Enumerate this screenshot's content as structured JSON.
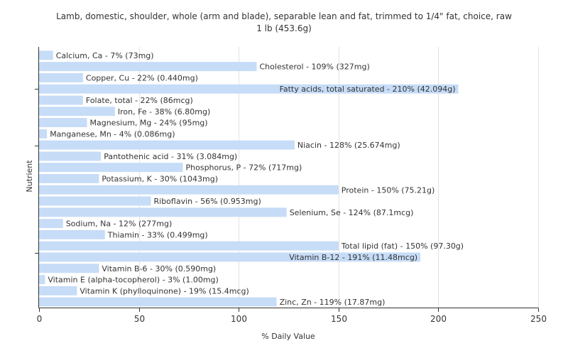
{
  "chart_data": {
    "type": "bar",
    "orientation": "horizontal",
    "title": "Lamb, domestic, shoulder, whole (arm and blade), separable lean and fat, trimmed to 1/4\" fat, choice, raw",
    "subtitle": "1 lb (453.6g)",
    "xlabel": "% Daily Value",
    "ylabel": "Nutrient",
    "xlim": [
      0,
      250
    ],
    "xticks": [
      0,
      50,
      100,
      150,
      200,
      250
    ],
    "grid": true,
    "legend": "none",
    "bar_color": "#c6dcf7",
    "categories": [
      "Calcium, Ca",
      "Cholesterol",
      "Copper, Cu",
      "Fatty acids, total saturated",
      "Folate, total",
      "Iron, Fe",
      "Magnesium, Mg",
      "Manganese, Mn",
      "Niacin",
      "Pantothenic acid",
      "Phosphorus, P",
      "Potassium, K",
      "Protein",
      "Riboflavin",
      "Selenium, Se",
      "Sodium, Na",
      "Thiamin",
      "Total lipid (fat)",
      "Vitamin B-12",
      "Vitamin B-6",
      "Vitamin E (alpha-tocopherol)",
      "Vitamin K (phylloquinone)",
      "Zinc, Zn"
    ],
    "values": [
      7,
      109,
      22,
      210,
      22,
      38,
      24,
      4,
      128,
      31,
      72,
      30,
      150,
      56,
      124,
      12,
      33,
      150,
      191,
      30,
      3,
      19,
      119
    ],
    "labels": [
      "Calcium, Ca - 7% (73mg)",
      "Cholesterol - 109% (327mg)",
      "Copper, Cu - 22% (0.440mg)",
      "Fatty acids, total saturated - 210% (42.094g)",
      "Folate, total - 22% (86mcg)",
      "Iron, Fe - 38% (6.80mg)",
      "Magnesium, Mg - 24% (95mg)",
      "Manganese, Mn - 4% (0.086mg)",
      "Niacin - 128% (25.674mg)",
      "Pantothenic acid - 31% (3.084mg)",
      "Phosphorus, P - 72% (717mg)",
      "Potassium, K - 30% (1043mg)",
      "Protein - 150% (75.21g)",
      "Riboflavin - 56% (0.953mg)",
      "Selenium, Se - 124% (87.1mcg)",
      "Sodium, Na - 12% (277mg)",
      "Thiamin - 33% (0.499mg)",
      "Total lipid (fat) - 150% (97.30g)",
      "Vitamin B-12 - 191% (11.48mcg)",
      "Vitamin B-6 - 30% (0.590mg)",
      "Vitamin E (alpha-tocopherol) - 3% (1.00mg)",
      "Vitamin K (phylloquinone) - 19% (15.4mcg)",
      "Zinc, Zn - 119% (17.87mg)"
    ]
  }
}
